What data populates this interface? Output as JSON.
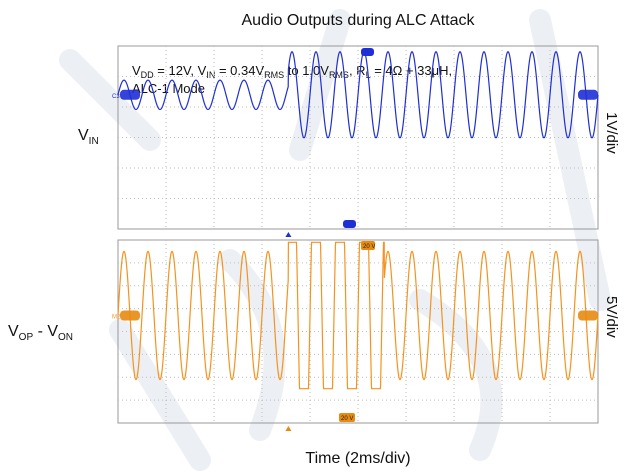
{
  "chart_data": {
    "type": "line",
    "title": "Audio Outputs during ALC Attack",
    "condition_line1_parts": [
      "V",
      "DD",
      " = 12V, V",
      "IN",
      " = 0.34V",
      "RMS",
      " to 1.0V",
      "RMS",
      ", R",
      "L",
      " = 4Ω + 33μH,"
    ],
    "condition_line2": "ALC-1 Mode",
    "xlabel": "Time (2ms/div)",
    "x_unit": "ms",
    "x_range": [
      0,
      20
    ],
    "x_divisions": 10,
    "panels": [
      {
        "id": "top",
        "label_main": "V",
        "label_sub": "IN",
        "scale_label": "1V/div",
        "volts_per_div": 1,
        "y_divisions": 6,
        "color": "#1f2fd6",
        "marker_color": "#1f2fd6",
        "channel_tag": "C3",
        "series": {
          "name": "VIN",
          "frequency_khz": 1,
          "start_ms": 0,
          "step_ms": 7.1,
          "baseline_div_from_top": 1.6,
          "amplitude_before_V": 0.48,
          "amplitude_after_V": 1.41
        }
      },
      {
        "id": "bottom",
        "label_parts": [
          "V",
          "OP",
          " - V",
          "ON"
        ],
        "scale_label": "5V/div",
        "volts_per_div": 5,
        "y_divisions": 8,
        "color": "#f5931e",
        "marker_color": "#e88a10",
        "channel_tag": "M2",
        "top_tag": "20 V",
        "bottom_tag": "20 V",
        "series": {
          "name": "VOP - VON",
          "frequency_khz": 1,
          "start_ms": 0,
          "step_ms": 7.1,
          "baseline_div_from_top": 3.3,
          "amplitude_before_V": 14,
          "amplitude_after_V": 14,
          "clipped_cycles_after_step": 4,
          "clip_level_V": 16
        }
      }
    ]
  }
}
